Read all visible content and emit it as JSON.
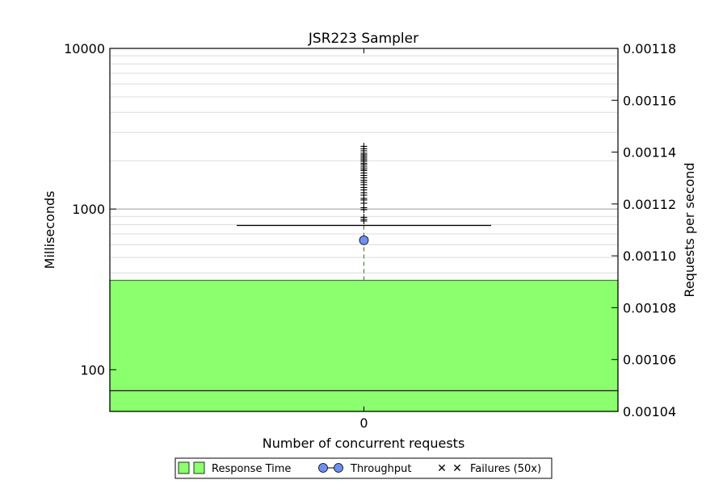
{
  "chart_data": {
    "type": "box",
    "title": "JSR223 Sampler",
    "xlabel": "Number of concurrent requests",
    "ylabel": "Milliseconds",
    "y2label": "Requests per second",
    "categories": [
      "0"
    ],
    "y_scale": "log",
    "ylim": [
      55,
      10000
    ],
    "y_ticks": [
      100,
      1000,
      10000
    ],
    "y_tick_labels": [
      "100",
      "1000",
      "10000"
    ],
    "y2_scale": "linear",
    "y2lim": [
      0.00104,
      0.00118
    ],
    "y2_ticks": [
      0.00104,
      0.00106,
      0.00108,
      0.0011,
      0.00112,
      0.00114,
      0.00116,
      0.00118
    ],
    "y2_tick_labels": [
      "0.00104",
      "0.00106",
      "0.00108",
      "0.00110",
      "0.00112",
      "0.00114",
      "0.00116",
      "0.00118"
    ],
    "grid": true,
    "response_time": {
      "name": "Response Time",
      "q1": 55,
      "median": 74,
      "q3": 360,
      "whisker_high": 790,
      "color": "#8cff6e",
      "outliers": [
        850,
        870,
        900,
        1000,
        1030,
        1100,
        1150,
        1180,
        1230,
        1280,
        1330,
        1380,
        1430,
        1480,
        1530,
        1580,
        1640,
        1700,
        1750,
        1800,
        1850,
        1900,
        1950,
        2000,
        2050,
        2100,
        2150,
        2200,
        2250,
        2330,
        2400,
        2480
      ]
    },
    "throughput": {
      "name": "Throughput",
      "x": "0",
      "value": 0.001106,
      "color": "#6f8ff0"
    },
    "failures": {
      "name": "Failures (50x)",
      "values": [],
      "color": "#ff0000"
    },
    "legend_position": "bottom-center"
  }
}
